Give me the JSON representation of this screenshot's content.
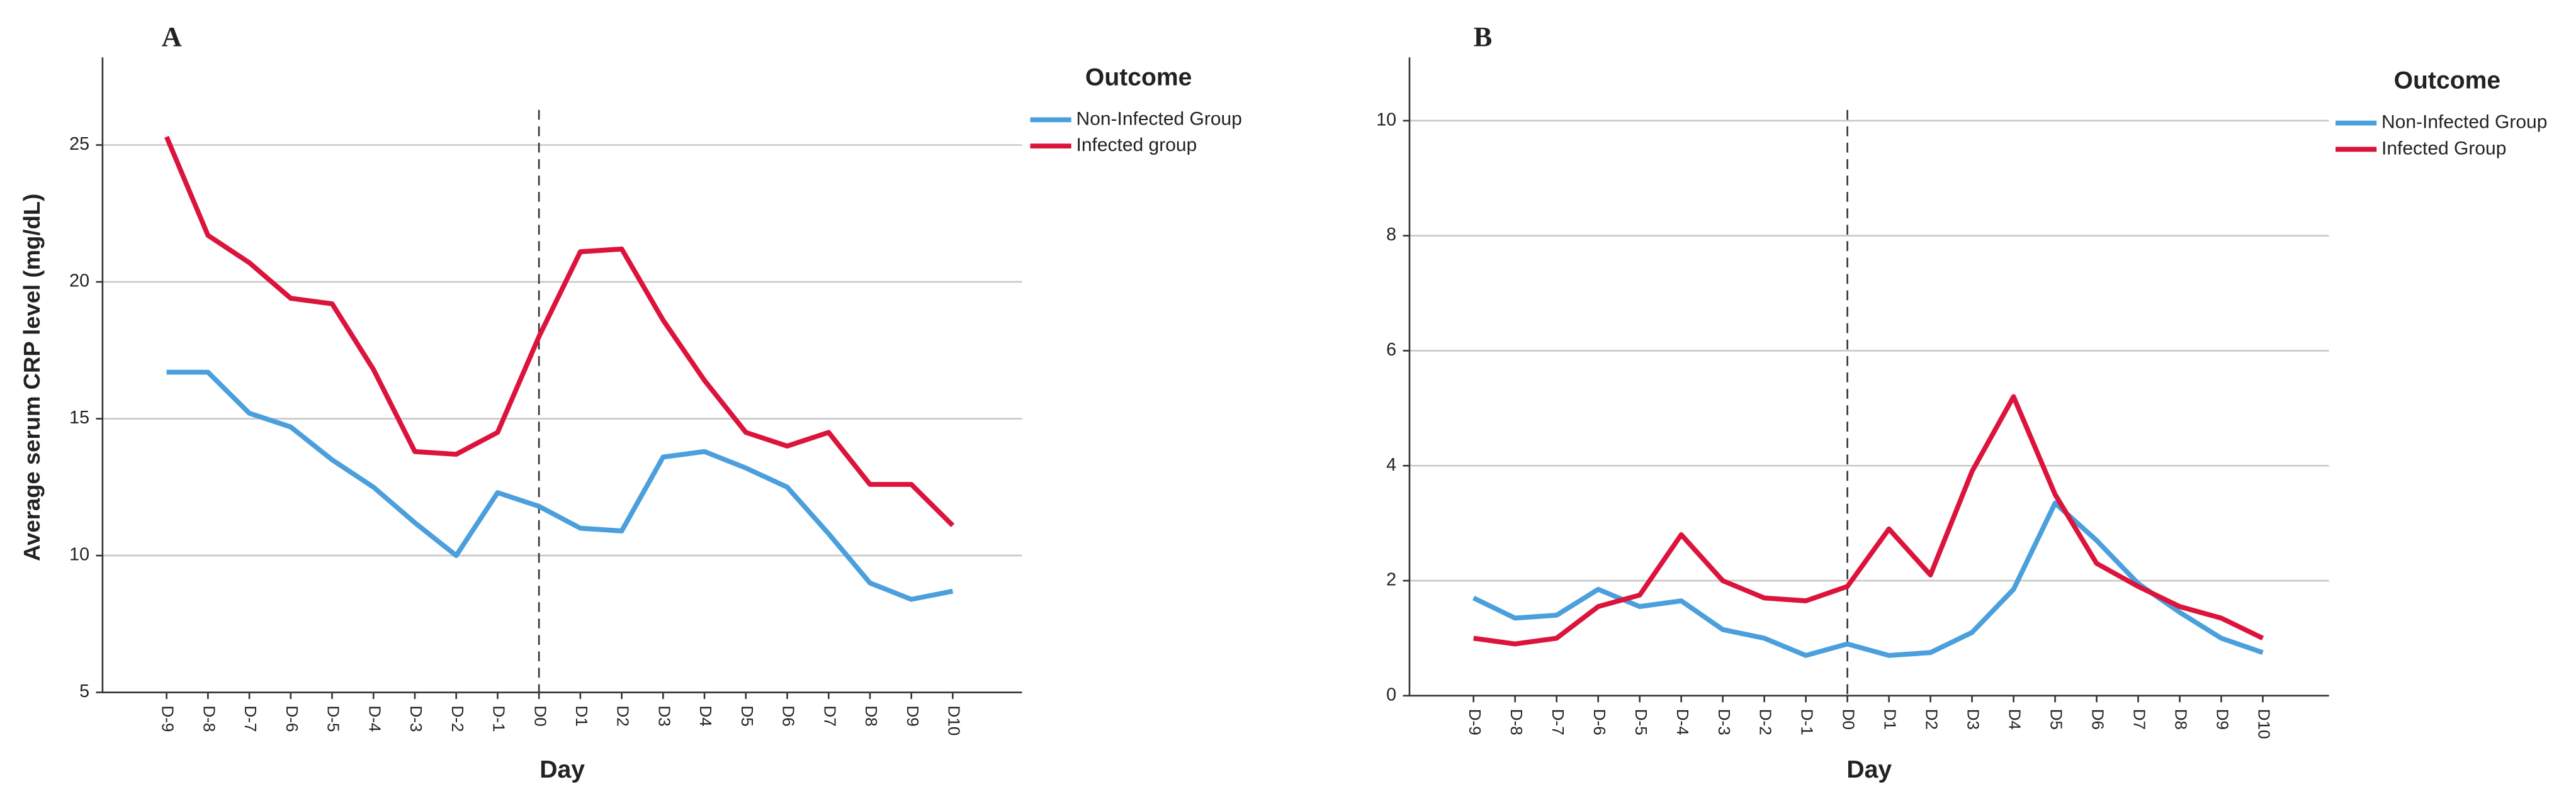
{
  "chart_data": [
    {
      "type": "line",
      "panel_label": "A",
      "y_label": "Average serum CRP level (mg/dL)",
      "x_label": "Day",
      "legend_title": "Outcome",
      "categories": [
        "D-9",
        "D-8",
        "D-7",
        "D-6",
        "D-5",
        "D-4",
        "D-3",
        "D-2",
        "D-1",
        "D0",
        "D1",
        "D2",
        "D3",
        "D4",
        "D5",
        "D6",
        "D7",
        "D8",
        "D9",
        "D10"
      ],
      "reference_line": "D0",
      "ylim": [
        5,
        28.2
      ],
      "yticks": [
        5,
        10,
        15,
        20,
        25
      ],
      "grid": true,
      "series": [
        {
          "name": "Non-Infected Group",
          "color": "#4a9fdc",
          "values": [
            16.7,
            16.7,
            15.2,
            14.7,
            13.5,
            12.5,
            11.2,
            10.0,
            12.3,
            11.8,
            11.0,
            10.9,
            13.6,
            13.8,
            13.2,
            12.5,
            10.8,
            9.0,
            8.4,
            8.7
          ]
        },
        {
          "name": "Infected group",
          "color": "#dc143c",
          "values": [
            25.3,
            21.7,
            20.7,
            19.4,
            19.2,
            16.8,
            13.8,
            13.7,
            14.5,
            18.0,
            21.1,
            21.2,
            18.6,
            16.4,
            14.5,
            14.0,
            14.5,
            12.6,
            12.6,
            11.1
          ]
        }
      ]
    },
    {
      "type": "line",
      "panel_label": "B",
      "x_label": "Day",
      "legend_title": "Outcome",
      "categories": [
        "D-9",
        "D-8",
        "D-7",
        "D-6",
        "D-5",
        "D-4",
        "D-3",
        "D-2",
        "D-1",
        "D0",
        "D1",
        "D2",
        "D3",
        "D4",
        "D5",
        "D6",
        "D7",
        "D8",
        "D9",
        "D10"
      ],
      "reference_line": "D0",
      "ylim": [
        0,
        11.1
      ],
      "yticks": [
        0,
        2,
        4,
        6,
        8,
        10
      ],
      "grid": true,
      "series": [
        {
          "name": "Non-Infected Group",
          "color": "#4a9fdc",
          "values": [
            1.7,
            1.35,
            1.4,
            1.85,
            1.55,
            1.65,
            1.15,
            1.0,
            0.7,
            0.9,
            0.7,
            0.75,
            1.1,
            1.85,
            3.35,
            2.7,
            1.95,
            1.45,
            1.0,
            0.75
          ]
        },
        {
          "name": "Infected Group",
          "color": "#dc143c",
          "values": [
            1.0,
            0.9,
            1.0,
            1.55,
            1.75,
            2.8,
            2.0,
            1.7,
            1.65,
            1.9,
            2.9,
            2.1,
            3.9,
            5.2,
            3.5,
            2.3,
            1.9,
            1.55,
            1.35,
            1.0
          ]
        }
      ]
    }
  ]
}
